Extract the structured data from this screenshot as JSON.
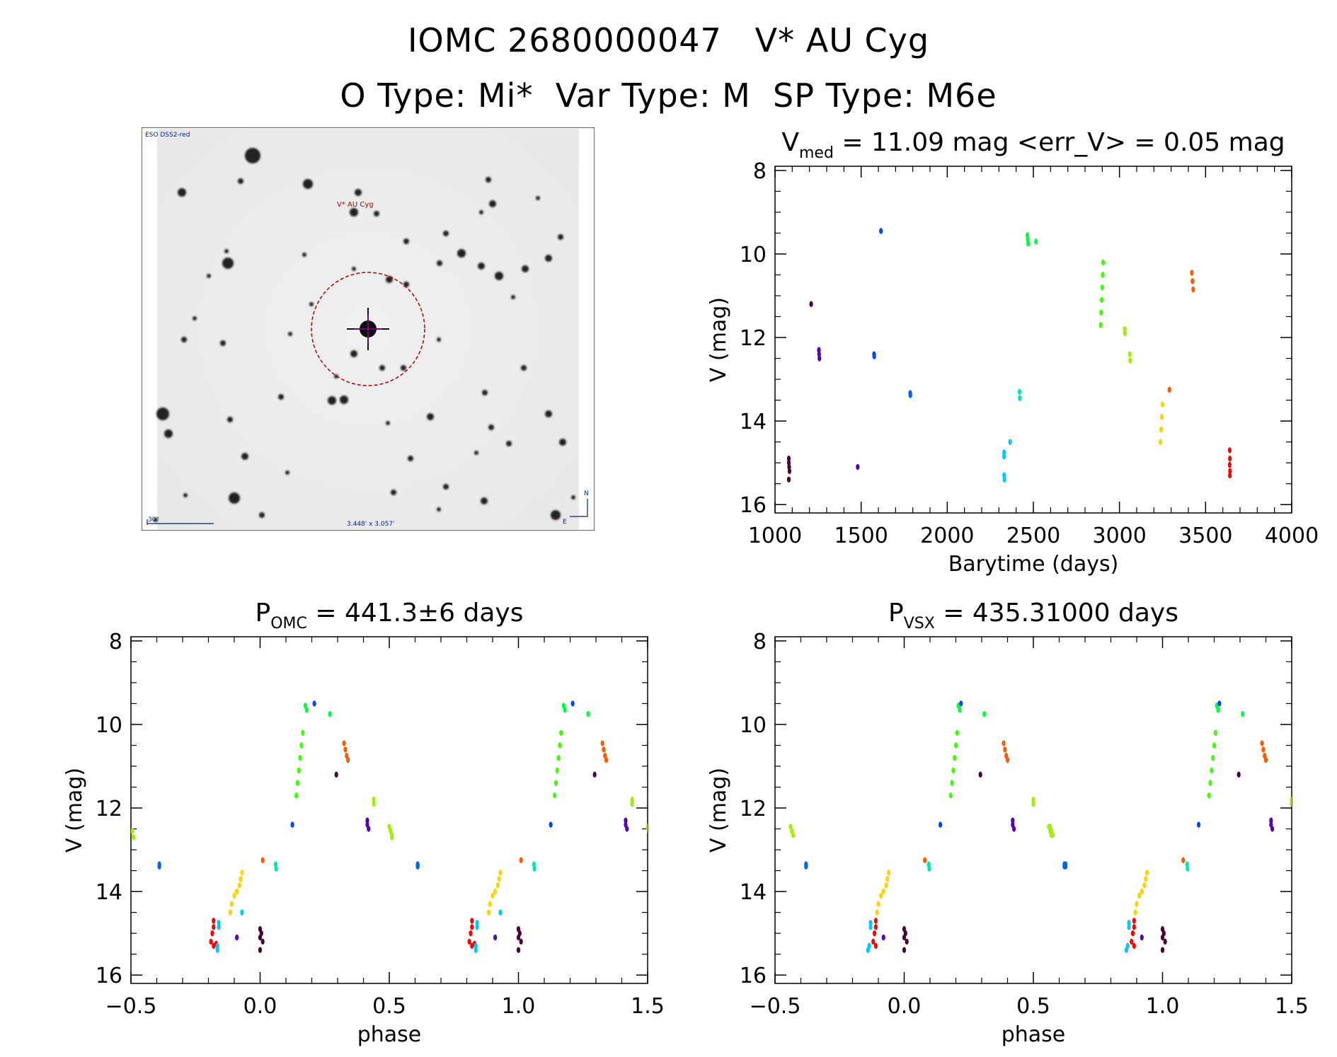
{
  "header": {
    "line1": "IOMC 2680000047   V* AU Cyg",
    "line2": "O Type: Mi*  Var Type: M  SP Type: M6e"
  },
  "thumbnail": {
    "survey_label": "ESO DSS2-red",
    "target_label": "V* AU Cyg",
    "scale_label": "30\"",
    "fov_label": "3.448' x 3.057'",
    "compass_n": "N",
    "compass_e": "E"
  },
  "colors": {
    "dark_purple": "#4b0037",
    "purple": "#5a00b4",
    "blue": "#0046ff",
    "blue2": "#0064f0",
    "cyan": "#00c8ff",
    "teal": "#00e6b4",
    "green": "#00ff3c",
    "green2": "#3cff00",
    "yellow_green": "#a0f000",
    "yellow": "#ffd200",
    "orange": "#ff5a00",
    "red": "#ff0000",
    "star_circle": "#b00000"
  },
  "chart_data": [
    {
      "id": "lightcurve",
      "type": "scatter",
      "title_main": "V",
      "title_sub": "med",
      "title_rest": " = 11.09 mag <err_V> = 0.05 mag",
      "xlabel": "Barytime (days)",
      "ylabel": "V (mag)",
      "xlim": [
        1000,
        4000
      ],
      "ylim": [
        16.2,
        7.9
      ],
      "xticks": [
        1000,
        1500,
        2000,
        2500,
        3000,
        3500,
        4000
      ],
      "yticks": [
        8,
        10,
        12,
        14,
        16
      ],
      "groups": [
        {
          "color": "dark_purple",
          "points": [
            [
              1080,
              14.9
            ],
            [
              1080,
              15.0
            ],
            [
              1082,
              15.1
            ],
            [
              1084,
              15.2
            ],
            [
              1080,
              15.4
            ]
          ]
        },
        {
          "color": "dark_purple",
          "points": [
            [
              1210,
              11.2
            ]
          ]
        },
        {
          "color": "purple",
          "points": [
            [
              1255,
              12.3
            ],
            [
              1256,
              12.4
            ],
            [
              1258,
              12.5
            ]
          ]
        },
        {
          "color": "purple",
          "points": [
            [
              1480,
              15.1
            ]
          ]
        },
        {
          "color": "blue",
          "points": [
            [
              1575,
              12.4
            ],
            [
              1576,
              12.45
            ]
          ]
        },
        {
          "color": "blue",
          "points": [
            [
              1615,
              9.45
            ]
          ]
        },
        {
          "color": "blue2",
          "points": [
            [
              1785,
              13.33
            ],
            [
              1786,
              13.38
            ]
          ]
        },
        {
          "color": "cyan",
          "points": [
            [
              2330,
              14.75
            ],
            [
              2330,
              14.85
            ],
            [
              2330,
              15.3
            ],
            [
              2332,
              15.4
            ],
            [
              2365,
              14.5
            ]
          ]
        },
        {
          "color": "teal",
          "points": [
            [
              2420,
              13.3
            ],
            [
              2421,
              13.45
            ]
          ]
        },
        {
          "color": "green",
          "points": [
            [
              2465,
              9.55
            ],
            [
              2467,
              9.65
            ],
            [
              2470,
              9.75
            ],
            [
              2515,
              9.7
            ]
          ]
        },
        {
          "color": "green2",
          "points": [
            [
              2905,
              10.2
            ],
            [
              2903,
              10.5
            ],
            [
              2900,
              10.8
            ],
            [
              2897,
              11.1
            ],
            [
              2894,
              11.4
            ],
            [
              2891,
              11.7
            ]
          ]
        },
        {
          "color": "yellow_green",
          "points": [
            [
              3030,
              11.8
            ],
            [
              3032,
              11.9
            ],
            [
              3060,
              12.4
            ],
            [
              3062,
              12.55
            ]
          ]
        },
        {
          "color": "yellow",
          "points": [
            [
              3250,
              13.6
            ],
            [
              3246,
              13.9
            ],
            [
              3242,
              14.2
            ],
            [
              3238,
              14.5
            ]
          ]
        },
        {
          "color": "orange",
          "points": [
            [
              3290,
              13.25
            ]
          ]
        },
        {
          "color": "orange",
          "points": [
            [
              3420,
              10.45
            ],
            [
              3424,
              10.65
            ],
            [
              3428,
              10.85
            ]
          ]
        },
        {
          "color": "red",
          "points": [
            [
              3640,
              14.7
            ],
            [
              3641,
              14.9
            ],
            [
              3640,
              15.05
            ],
            [
              3642,
              15.2
            ],
            [
              3641,
              15.3
            ]
          ]
        }
      ]
    },
    {
      "id": "phase_omc",
      "type": "scatter",
      "title_main": "P",
      "title_sub": "OMC",
      "title_rest": " = 441.3±6 days",
      "xlabel": "phase",
      "ylabel": "V (mag)",
      "xlim": [
        -0.5,
        1.5
      ],
      "ylim": [
        16.2,
        7.9
      ],
      "xticks": [
        -0.5,
        0.0,
        0.5,
        1.0,
        1.5
      ],
      "xtick_labels": [
        "−0.5",
        "0.0",
        "0.5",
        "1.0",
        "1.5"
      ],
      "yticks": [
        8,
        10,
        12,
        14,
        16
      ],
      "repeat": true,
      "groups": [
        {
          "color": "yellow_green",
          "points": [
            [
              -0.495,
              12.55
            ],
            [
              -0.49,
              12.7
            ]
          ]
        },
        {
          "color": "blue2",
          "points": [
            [
              -0.39,
              13.35
            ],
            [
              -0.39,
              13.4
            ]
          ]
        },
        {
          "color": "red",
          "points": [
            [
              -0.18,
              14.7
            ],
            [
              -0.18,
              14.85
            ],
            [
              -0.185,
              15.0
            ],
            [
              -0.19,
              15.2
            ],
            [
              -0.17,
              15.25
            ],
            [
              -0.18,
              15.3
            ]
          ]
        },
        {
          "color": "cyan",
          "points": [
            [
              -0.16,
              14.75
            ],
            [
              -0.16,
              14.85
            ],
            [
              -0.165,
              15.3
            ],
            [
              -0.165,
              15.4
            ],
            [
              -0.07,
              14.5
            ]
          ]
        },
        {
          "color": "yellow",
          "points": [
            [
              -0.07,
              13.55
            ],
            [
              -0.075,
              13.7
            ],
            [
              -0.08,
              13.85
            ],
            [
              -0.09,
              14.0
            ],
            [
              -0.1,
              14.1
            ],
            [
              -0.11,
              14.3
            ],
            [
              -0.115,
              14.5
            ]
          ]
        },
        {
          "color": "purple",
          "points": [
            [
              -0.09,
              15.1
            ]
          ]
        },
        {
          "color": "dark_purple",
          "points": [
            [
              0.0,
              14.9
            ],
            [
              0.005,
              15.0
            ],
            [
              0.0,
              15.1
            ],
            [
              0.01,
              15.2
            ],
            [
              0.0,
              15.4
            ]
          ]
        },
        {
          "color": "orange",
          "points": [
            [
              0.01,
              13.25
            ]
          ]
        },
        {
          "color": "teal",
          "points": [
            [
              0.06,
              13.35
            ],
            [
              0.062,
              13.45
            ]
          ]
        },
        {
          "color": "blue",
          "points": [
            [
              0.125,
              12.4
            ]
          ]
        },
        {
          "color": "green2",
          "points": [
            [
              0.165,
              10.2
            ],
            [
              0.16,
              10.5
            ],
            [
              0.155,
              10.8
            ],
            [
              0.15,
              11.1
            ],
            [
              0.145,
              11.4
            ],
            [
              0.14,
              11.7
            ]
          ]
        },
        {
          "color": "green",
          "points": [
            [
              0.175,
              9.55
            ],
            [
              0.18,
              9.65
            ],
            [
              0.27,
              9.75
            ]
          ]
        },
        {
          "color": "blue",
          "points": [
            [
              0.21,
              9.5
            ]
          ]
        },
        {
          "color": "dark_purple",
          "points": [
            [
              0.295,
              11.2
            ]
          ]
        },
        {
          "color": "orange",
          "points": [
            [
              0.325,
              10.45
            ],
            [
              0.33,
              10.6
            ],
            [
              0.335,
              10.75
            ],
            [
              0.34,
              10.85
            ]
          ]
        },
        {
          "color": "purple",
          "points": [
            [
              0.415,
              12.3
            ],
            [
              0.415,
              12.4
            ],
            [
              0.42,
              12.5
            ]
          ]
        },
        {
          "color": "yellow_green",
          "points": [
            [
              0.44,
              11.8
            ],
            [
              0.44,
              11.9
            ]
          ]
        },
        {
          "color": "yellow_green",
          "points": [
            [
              0.5,
              12.45
            ],
            [
              0.505,
              12.55
            ],
            [
              0.51,
              12.65
            ]
          ]
        },
        {
          "color": "blue2",
          "points": [
            [
              0.61,
              13.35
            ],
            [
              0.61,
              13.4
            ]
          ]
        }
      ]
    },
    {
      "id": "phase_vsx",
      "type": "scatter",
      "title_main": "P",
      "title_sub": "VSX",
      "title_rest": " = 435.31000 days",
      "xlabel": "phase",
      "ylabel": "V (mag)",
      "xlim": [
        -0.5,
        1.5
      ],
      "ylim": [
        16.2,
        7.9
      ],
      "xticks": [
        -0.5,
        0.0,
        0.5,
        1.0,
        1.5
      ],
      "xtick_labels": [
        "−0.5",
        "0.0",
        "0.5",
        "1.0",
        "1.5"
      ],
      "yticks": [
        8,
        10,
        12,
        14,
        16
      ],
      "repeat": true,
      "groups": [
        {
          "color": "yellow_green",
          "points": [
            [
              -0.44,
              12.45
            ],
            [
              -0.435,
              12.55
            ],
            [
              -0.43,
              12.65
            ]
          ]
        },
        {
          "color": "blue2",
          "points": [
            [
              -0.38,
              13.35
            ],
            [
              -0.38,
              13.4
            ]
          ]
        },
        {
          "color": "cyan",
          "points": [
            [
              -0.13,
              14.75
            ],
            [
              -0.13,
              14.85
            ],
            [
              -0.135,
              15.3
            ],
            [
              -0.14,
              15.4
            ]
          ]
        },
        {
          "color": "red",
          "points": [
            [
              -0.11,
              14.7
            ],
            [
              -0.11,
              14.85
            ],
            [
              -0.115,
              15.0
            ],
            [
              -0.12,
              15.2
            ],
            [
              -0.11,
              15.3
            ]
          ]
        },
        {
          "color": "purple",
          "points": [
            [
              -0.08,
              15.1
            ]
          ]
        },
        {
          "color": "yellow",
          "points": [
            [
              -0.06,
              13.55
            ],
            [
              -0.065,
              13.7
            ],
            [
              -0.07,
              13.85
            ],
            [
              -0.08,
              14.0
            ],
            [
              -0.09,
              14.1
            ],
            [
              -0.1,
              14.3
            ],
            [
              -0.105,
              14.5
            ]
          ]
        },
        {
          "color": "dark_purple",
          "points": [
            [
              0.0,
              14.9
            ],
            [
              0.005,
              15.0
            ],
            [
              0.0,
              15.1
            ],
            [
              0.01,
              15.2
            ],
            [
              0.0,
              15.4
            ]
          ]
        },
        {
          "color": "orange",
          "points": [
            [
              0.08,
              13.25
            ]
          ]
        },
        {
          "color": "teal",
          "points": [
            [
              0.095,
              13.35
            ],
            [
              0.097,
              13.45
            ]
          ]
        },
        {
          "color": "blue",
          "points": [
            [
              0.14,
              12.4
            ]
          ]
        },
        {
          "color": "green2",
          "points": [
            [
              0.205,
              10.2
            ],
            [
              0.2,
              10.5
            ],
            [
              0.195,
              10.8
            ],
            [
              0.19,
              11.1
            ],
            [
              0.185,
              11.4
            ],
            [
              0.18,
              11.7
            ]
          ]
        },
        {
          "color": "green",
          "points": [
            [
              0.21,
              9.55
            ],
            [
              0.215,
              9.65
            ],
            [
              0.31,
              9.75
            ]
          ]
        },
        {
          "color": "blue",
          "points": [
            [
              0.22,
              9.5
            ]
          ]
        },
        {
          "color": "dark_purple",
          "points": [
            [
              0.295,
              11.2
            ]
          ]
        },
        {
          "color": "orange",
          "points": [
            [
              0.385,
              10.45
            ],
            [
              0.39,
              10.6
            ],
            [
              0.395,
              10.75
            ],
            [
              0.4,
              10.85
            ]
          ]
        },
        {
          "color": "purple",
          "points": [
            [
              0.42,
              12.3
            ],
            [
              0.42,
              12.4
            ],
            [
              0.425,
              12.5
            ]
          ]
        },
        {
          "color": "yellow_green",
          "points": [
            [
              0.5,
              11.8
            ],
            [
              0.5,
              11.9
            ]
          ]
        },
        {
          "color": "yellow_green",
          "points": [
            [
              0.565,
              12.45
            ],
            [
              0.57,
              12.55
            ],
            [
              0.575,
              12.65
            ]
          ]
        },
        {
          "color": "blue2",
          "points": [
            [
              0.625,
              13.35
            ],
            [
              0.625,
              13.4
            ]
          ]
        }
      ]
    }
  ]
}
